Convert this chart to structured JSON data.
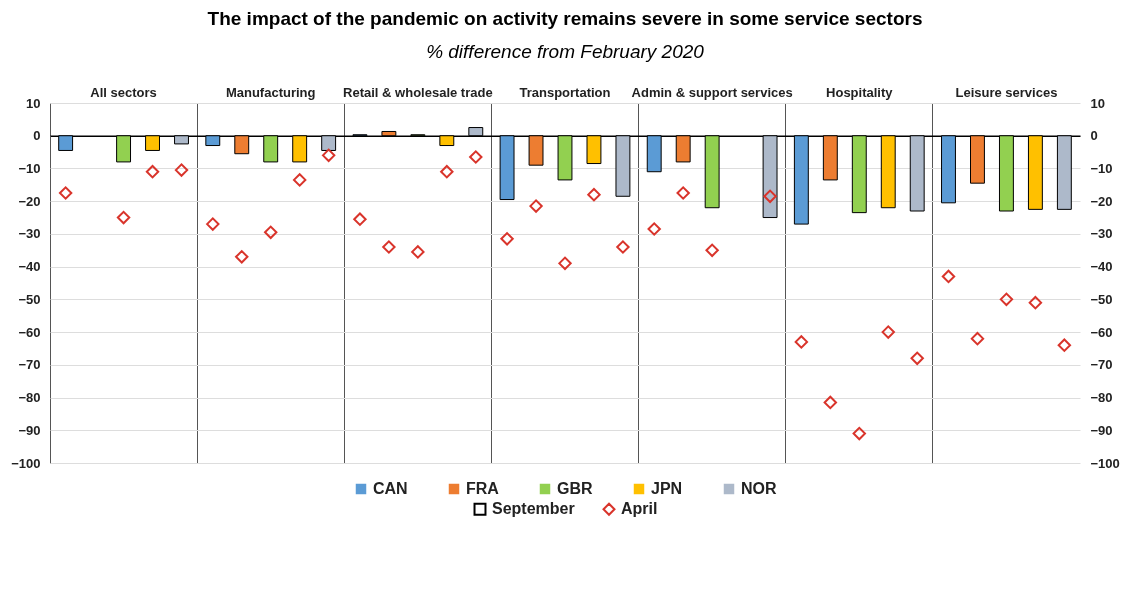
{
  "chart_data": {
    "type": "bar",
    "title": "The impact of the pandemic on activity remains severe in some service sectors",
    "subtitle": "% difference from February 2020",
    "categories": [
      "All sectors",
      "Manufacturing",
      "Retail & wholesale trade",
      "Transportation",
      "Admin & support services",
      "Hospitality",
      "Leisure services"
    ],
    "series": [
      {
        "name": "CAN",
        "color": "#5b9bd5",
        "values": [
          -4.5,
          -3,
          0.3,
          -19.5,
          -11,
          -27,
          -20.5
        ]
      },
      {
        "name": "FRA",
        "color": "#ed7d31",
        "values": [
          null,
          -5.5,
          1.3,
          -9,
          -8,
          -13.5,
          -14.5
        ]
      },
      {
        "name": "GBR",
        "color": "#92d050",
        "values": [
          -8,
          -8,
          0.3,
          -13.5,
          -22,
          -23.5,
          -23
        ]
      },
      {
        "name": "JPN",
        "color": "#ffc000",
        "values": [
          -4.5,
          -8,
          -3,
          -8.5,
          null,
          -22,
          -22.5
        ]
      },
      {
        "name": "NOR",
        "color": "#adb9ca",
        "values": [
          -2.5,
          -4.5,
          2.5,
          -18.5,
          -25,
          -23,
          -22.5
        ]
      },
      {
        "type": "scatter",
        "name": "April",
        "color": "#d9342b",
        "values": [
          -17.5,
          -27,
          -25.5,
          -31.5,
          -28.5,
          -63,
          -43
        ]
      },
      {
        "type": "scatter",
        "color": "#d9342b",
        "values": [
          null,
          -37,
          -34,
          -21.5,
          -17.5,
          -81.5,
          -62
        ]
      },
      {
        "type": "scatter",
        "color": "#d9342b",
        "values": [
          -25,
          -29.5,
          -35.5,
          -39,
          -35,
          -91,
          -50
        ]
      },
      {
        "type": "scatter",
        "color": "#d9342b",
        "values": [
          -11,
          -13.5,
          -11,
          -18,
          null,
          -60,
          -51
        ]
      },
      {
        "type": "scatter",
        "color": "#d9342b",
        "values": [
          -10.5,
          -6,
          -6.5,
          -34,
          -18.5,
          -68,
          -64
        ]
      }
    ],
    "annotations": [
      "September"
    ],
    "ylim": [
      -100,
      10
    ],
    "yticks": [
      10,
      0,
      -10,
      -20,
      -30,
      -40,
      -50,
      -60,
      -70,
      -80,
      -90,
      -100
    ],
    "y2lim": [
      -100,
      10
    ],
    "y2ticks": [
      10,
      0,
      -10,
      -20,
      -30,
      -40,
      -50,
      -60,
      -70,
      -80,
      -90,
      -100
    ],
    "grid": true,
    "legend": "bottom",
    "marker": "diamond"
  }
}
